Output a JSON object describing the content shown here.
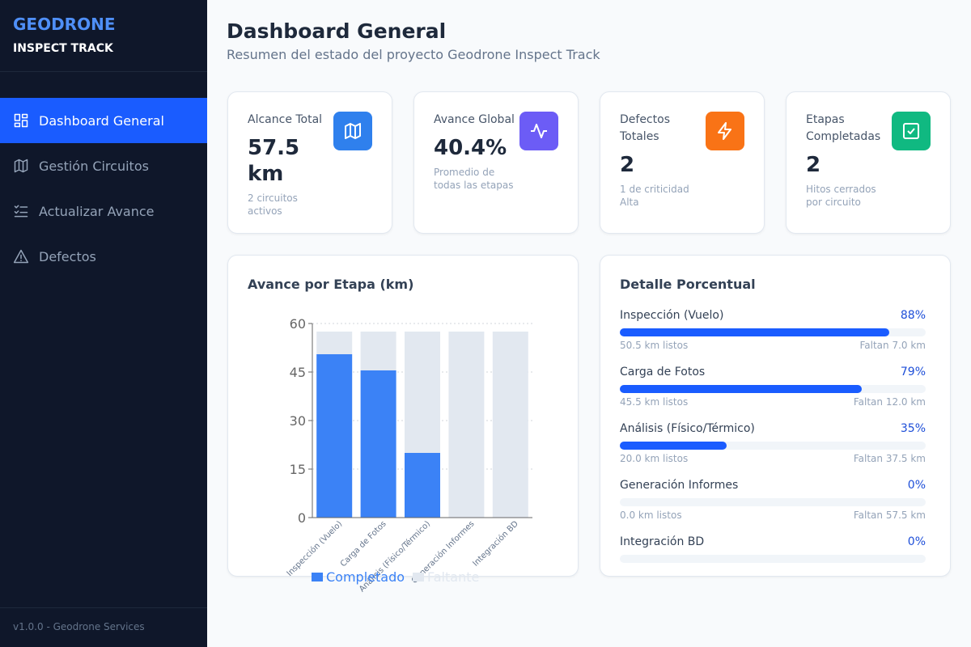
{
  "sidebar": {
    "brand_title": "GEODRONE",
    "brand_subtitle": "INSPECT TRACK",
    "nav": [
      "Dashboard General",
      "Gestión Circuitos",
      "Actualizar Avance",
      "Defectos"
    ],
    "footer": "v1.0.0 - Geodrone Services"
  },
  "header": {
    "title": "Dashboard General",
    "subtitle": "Resumen del estado del proyecto Geodrone Inspect Track"
  },
  "cards": [
    {
      "label": "Alcance Total",
      "value": "57.5 km",
      "note": "2 circuitos activos",
      "color": "#2f80ed"
    },
    {
      "label": "Avance Global",
      "value": "40.4%",
      "note": "Promedio de todas las etapas",
      "color": "#6c5cf6"
    },
    {
      "label": "Defectos Totales",
      "value": "2",
      "note": "1 de criticidad Alta",
      "color": "#f97316"
    },
    {
      "label": "Etapas Completadas",
      "value": "2",
      "note": "Hitos cerrados por circuito",
      "color": "#10b981"
    }
  ],
  "chart_data": {
    "type": "stacked_bar",
    "title": "Avance por Etapa (km)",
    "categories": [
      "Inspección (Vuelo)",
      "Carga de Fotos",
      "Análisis (Físico/Térmico)",
      "Generación Informes",
      "Integración BD"
    ],
    "series": [
      {
        "name": "Completado",
        "color": "#3b82f6",
        "values": [
          50.5,
          45.5,
          20,
          0,
          0
        ]
      },
      {
        "name": "Faltante",
        "color": "#e2e8f0",
        "values": [
          7,
          12,
          37.5,
          57.5,
          57.5
        ]
      }
    ],
    "ylim": [
      0,
      60
    ],
    "yticks": [
      0,
      15,
      30,
      45,
      60
    ],
    "grid": true,
    "legend": "bottom"
  },
  "detail": {
    "title": "Detalle Porcentual",
    "items": [
      {
        "name": "Inspección (Vuelo)",
        "value": 88,
        "value_label": "88%",
        "done": "50.5 km listos",
        "remaining": "Faltan 7.0 km"
      },
      {
        "name": "Carga de Fotos",
        "value": 79,
        "value_label": "79%",
        "done": "45.5 km listos",
        "remaining": "Faltan 12.0 km"
      },
      {
        "name": "Análisis (Físico/Térmico)",
        "value": 35,
        "value_label": "35%",
        "done": "20.0 km listos",
        "remaining": "Faltan 37.5 km"
      },
      {
        "name": "Generación Informes",
        "value": 0,
        "value_label": "0%",
        "done": "0.0 km listos",
        "remaining": "Faltan 57.5 km"
      },
      {
        "name": "Integración BD",
        "value": 0,
        "value_label": "0%"
      }
    ]
  }
}
